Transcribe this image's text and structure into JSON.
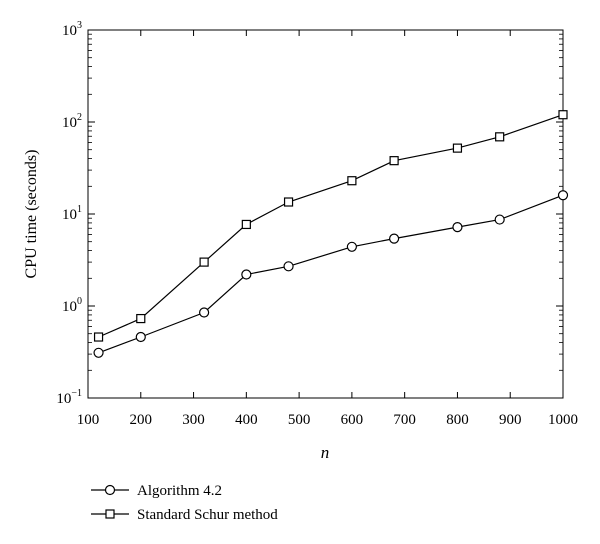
{
  "chart_data": {
    "type": "line",
    "title": "",
    "xlabel": "n",
    "ylabel": "CPU time (seconds)",
    "xlim": [
      100,
      1000
    ],
    "ylim": [
      0.1,
      1000
    ],
    "yscale": "log",
    "grid": false,
    "legend_position": "bottom-left, below plot",
    "x_ticks": [
      "100",
      "200",
      "300",
      "400",
      "500",
      "600",
      "700",
      "800",
      "900",
      "1000"
    ],
    "y_ticks": [
      {
        "value": 0.1,
        "base": "10",
        "exp": "−1"
      },
      {
        "value": 1,
        "base": "10",
        "exp": "0"
      },
      {
        "value": 10,
        "base": "10",
        "exp": "1"
      },
      {
        "value": 100,
        "base": "10",
        "exp": "2"
      },
      {
        "value": 1000,
        "base": "10",
        "exp": "3"
      }
    ],
    "series": [
      {
        "name": "Algorithm 4.2",
        "marker": "circle",
        "x": [
          120,
          200,
          320,
          400,
          480,
          600,
          680,
          800,
          880,
          1000
        ],
        "y": [
          0.31,
          0.46,
          0.85,
          2.2,
          2.7,
          4.4,
          5.4,
          7.2,
          8.7,
          16
        ]
      },
      {
        "name": "Standard Schur method",
        "marker": "square",
        "x": [
          120,
          200,
          320,
          400,
          480,
          600,
          680,
          800,
          880,
          1000
        ],
        "y": [
          0.46,
          0.73,
          3.0,
          7.7,
          13.5,
          23,
          38,
          52,
          69,
          120
        ]
      }
    ]
  }
}
